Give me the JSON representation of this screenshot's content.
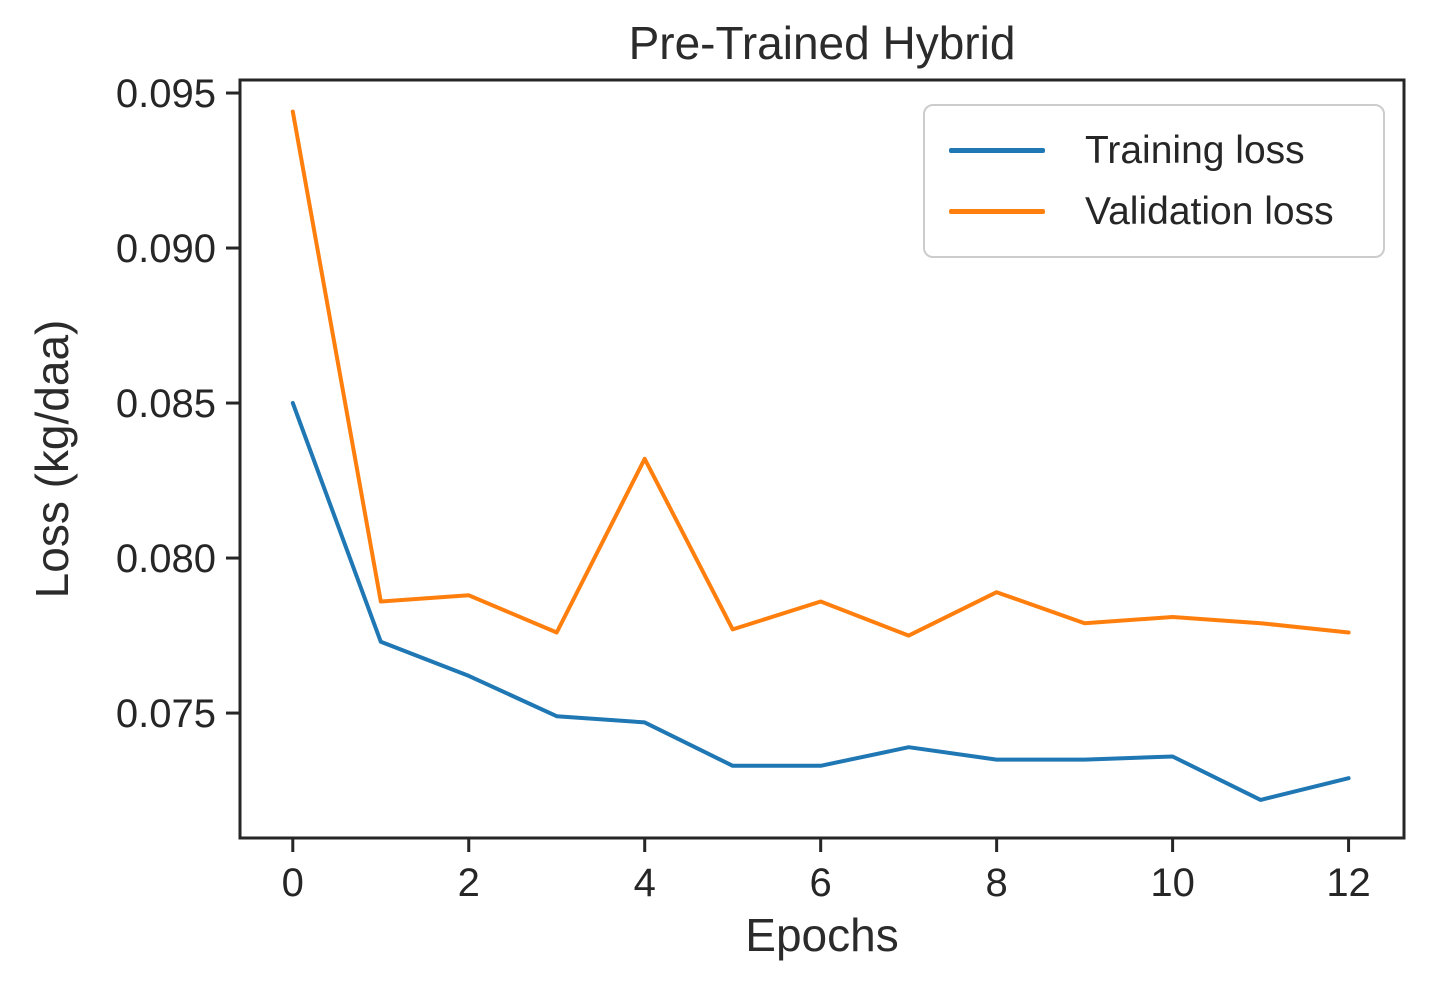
{
  "chart_data": {
    "type": "line",
    "title": "Pre-Trained Hybrid",
    "xlabel": "Epochs",
    "ylabel": "Loss (kg/daa)",
    "x": [
      0,
      1,
      2,
      3,
      4,
      5,
      6,
      7,
      8,
      9,
      10,
      11,
      12
    ],
    "series": [
      {
        "name": "Training loss",
        "color": "#1f77b4",
        "values": [
          0.085,
          0.0773,
          0.0762,
          0.0749,
          0.0747,
          0.0733,
          0.0733,
          0.0739,
          0.0735,
          0.0735,
          0.0736,
          0.0722,
          0.0729
        ]
      },
      {
        "name": "Validation loss",
        "color": "#ff7f0e",
        "values": [
          0.0944,
          0.0786,
          0.0788,
          0.0776,
          0.0832,
          0.0777,
          0.0786,
          0.0775,
          0.0789,
          0.0779,
          0.0781,
          0.0779,
          0.0776
        ]
      }
    ],
    "xlim": [
      -0.6,
      12.63
    ],
    "ylim": [
      0.07097,
      0.09542
    ],
    "xticks": {
      "values": [
        0,
        2,
        4,
        6,
        8,
        10,
        12
      ],
      "labels": [
        "0",
        "2",
        "4",
        "6",
        "8",
        "10",
        "12"
      ]
    },
    "yticks": {
      "values": [
        0.075,
        0.08,
        0.085,
        0.09,
        0.095
      ],
      "labels": [
        "0.075",
        "0.080",
        "0.085",
        "0.090",
        "0.095"
      ]
    },
    "grid": false,
    "legend": {
      "position": "upper right"
    },
    "axis_color": "#262626",
    "tick_label_color": "#262626",
    "line_width": 4
  }
}
